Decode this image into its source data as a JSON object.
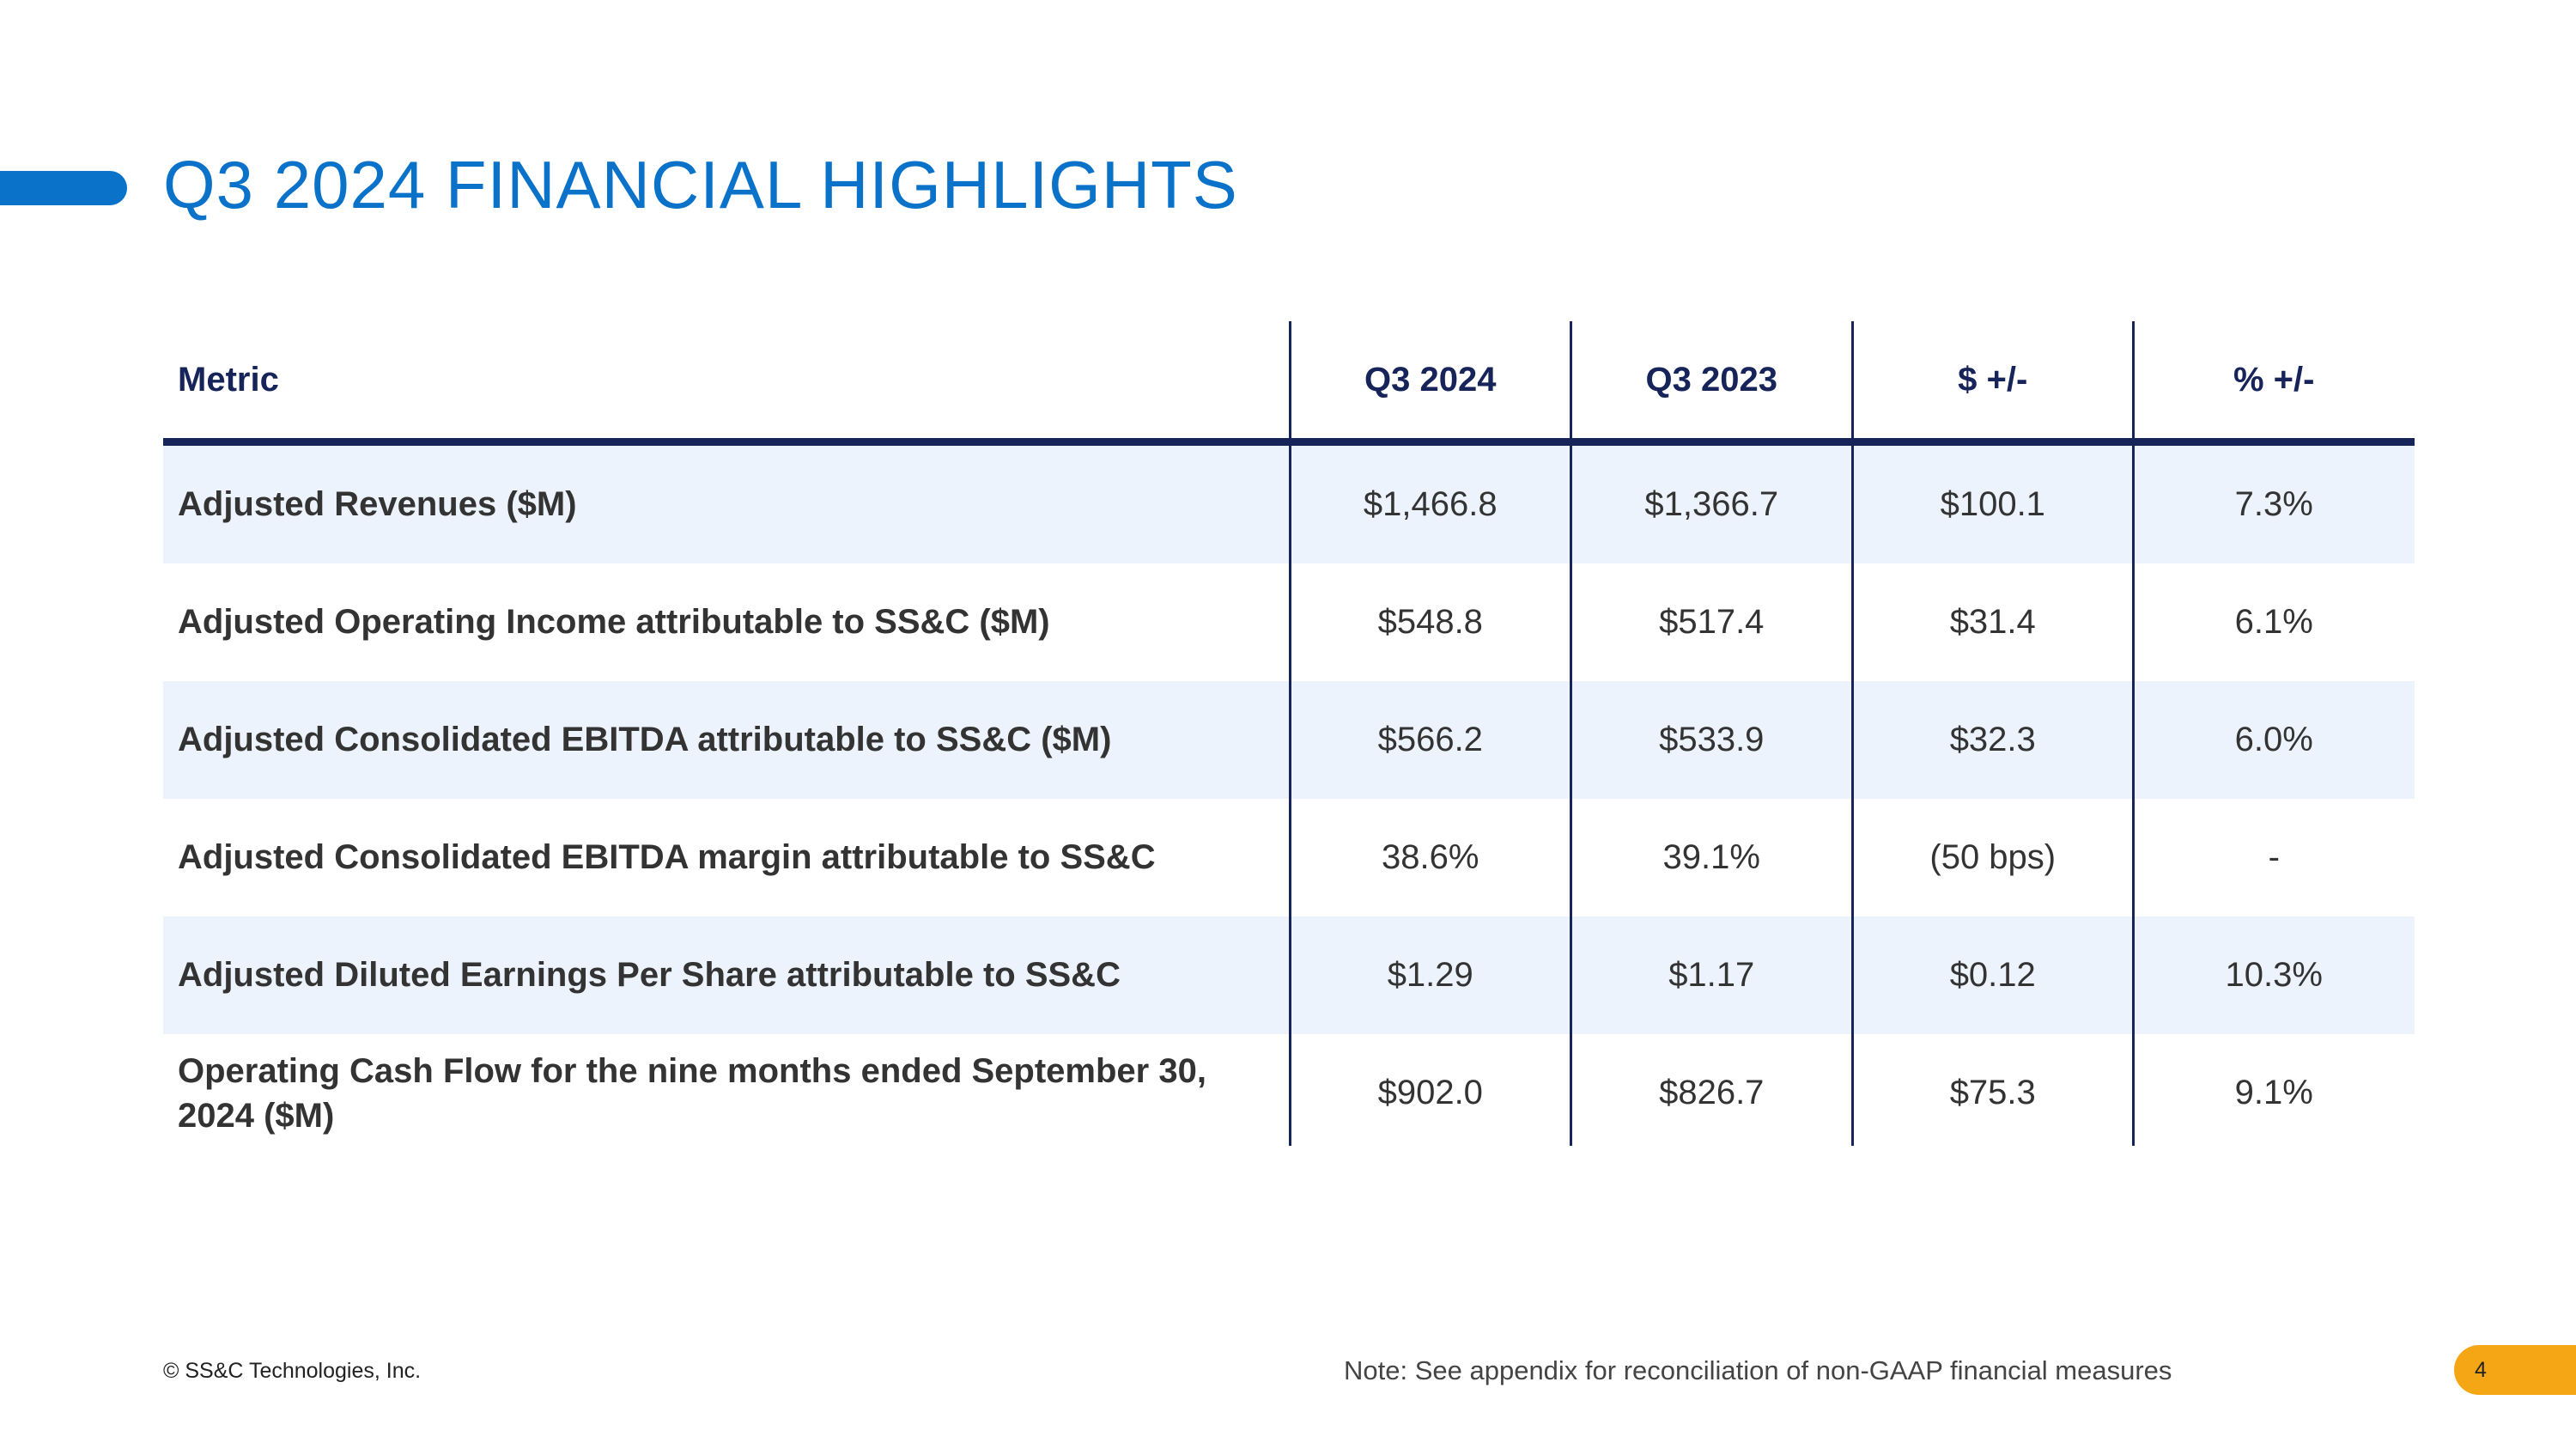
{
  "slide": {
    "title": "Q3 2024 FINANCIAL HIGHLIGHTS",
    "page_number": "4",
    "copyright": "© SS&C Technologies, Inc.",
    "note": "Note: See appendix for reconciliation of non-GAAP financial measures"
  },
  "table": {
    "headers": [
      "Metric",
      "Q3 2024",
      "Q3 2023",
      "$ +/-",
      "% +/-"
    ],
    "rows": [
      {
        "metric": "Adjusted Revenues ($M)",
        "q3_2024": "$1,466.8",
        "q3_2023": "$1,366.7",
        "dollar_change": "$100.1",
        "pct_change": "7.3%"
      },
      {
        "metric": "Adjusted Operating Income attributable to SS&C ($M)",
        "q3_2024": "$548.8",
        "q3_2023": "$517.4",
        "dollar_change": "$31.4",
        "pct_change": "6.1%"
      },
      {
        "metric": "Adjusted Consolidated EBITDA attributable to SS&C ($M)",
        "q3_2024": "$566.2",
        "q3_2023": "$533.9",
        "dollar_change": "$32.3",
        "pct_change": "6.0%"
      },
      {
        "metric": "Adjusted Consolidated EBITDA margin attributable to SS&C",
        "q3_2024": "38.6%",
        "q3_2023": "39.1%",
        "dollar_change": "(50 bps)",
        "pct_change": "-"
      },
      {
        "metric": "Adjusted Diluted Earnings Per Share attributable to SS&C",
        "q3_2024": "$1.29",
        "q3_2023": "$1.17",
        "dollar_change": "$0.12",
        "pct_change": "10.3%"
      },
      {
        "metric": "Operating Cash Flow for the nine months ended September 30, 2024 ($M)",
        "q3_2024": "$902.0",
        "q3_2023": "$826.7",
        "dollar_change": "$75.3",
        "pct_change": "9.1%"
      }
    ]
  },
  "colors": {
    "accent": "#0a72c9",
    "navy": "#16245a",
    "row_shade": "#ecf3fc",
    "badge": "#f5a614"
  }
}
